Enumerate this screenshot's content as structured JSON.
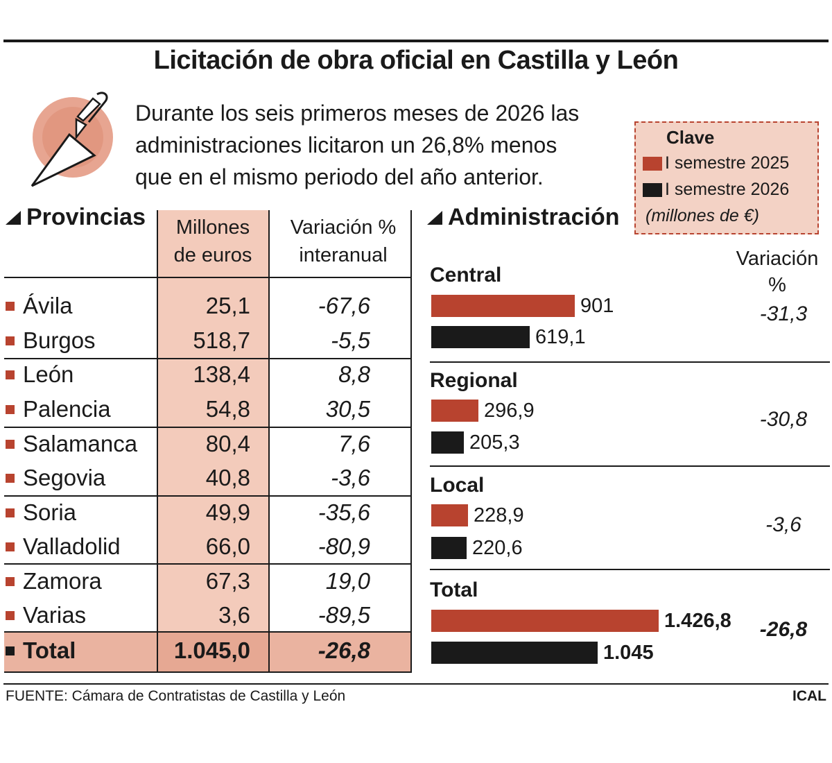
{
  "title": "Licitación de obra oficial en Castilla y León",
  "intro_lines": [
    "Durante los seis primeros meses de 2026 las",
    "administraciones licitaron un 26,8% menos",
    "que en el mismo periodo del año anterior."
  ],
  "icon": "trowel-icon",
  "colors": {
    "s2025": "#b8432f",
    "s2026": "#1a1a1a",
    "peach": "#f3cbbb",
    "legend_bg": "#f3d2c5"
  },
  "legend": {
    "title": "Clave",
    "items": [
      "I semestre 2025",
      "I semestre 2026"
    ],
    "unit": "(millones de €)"
  },
  "provincias": {
    "heading": "Provincias",
    "col1_line1": "Millones",
    "col1_line2": "de euros",
    "col2_line1": "Variación %",
    "col2_line2": "interanual",
    "rows": [
      {
        "name": "Ávila",
        "value": "25,1",
        "var": "-67,6"
      },
      {
        "name": "Burgos",
        "value": "518,7",
        "var": "-5,5"
      },
      {
        "name": "León",
        "value": "138,4",
        "var": "8,8"
      },
      {
        "name": "Palencia",
        "value": "54,8",
        "var": "30,5"
      },
      {
        "name": "Salamanca",
        "value": "80,4",
        "var": "7,6"
      },
      {
        "name": "Segovia",
        "value": "40,8",
        "var": "-3,6"
      },
      {
        "name": "Soria",
        "value": "49,9",
        "var": "-35,6"
      },
      {
        "name": "Valladolid",
        "value": "66,0",
        "var": "-80,9"
      },
      {
        "name": "Zamora",
        "value": "67,3",
        "var": "19,0"
      },
      {
        "name": "Varias",
        "value": "3,6",
        "var": "-89,5"
      }
    ],
    "total": {
      "name": "Total",
      "value": "1.045,0",
      "var": "-26,8"
    }
  },
  "administracion": {
    "heading": "Administración",
    "var_head_line1": "Variación",
    "var_head_line2": "%"
  },
  "chart_data": {
    "type": "bar",
    "orientation": "horizontal",
    "categories": [
      "Central",
      "Regional",
      "Local",
      "Total"
    ],
    "series": [
      {
        "name": "I semestre 2025",
        "values": [
          901,
          296.9,
          228.9,
          1426.8
        ],
        "labels": [
          "901",
          "296,9",
          "228,9",
          "1.426,8"
        ]
      },
      {
        "name": "I semestre 2026",
        "values": [
          619.1,
          205.3,
          220.6,
          1045
        ],
        "labels": [
          "619,1",
          "205,3",
          "220,6",
          "1.045"
        ]
      }
    ],
    "variation": [
      "-31,3",
      "-30,8",
      "-3,6",
      "-26,8"
    ],
    "unit": "(millones de €)"
  },
  "source": "FUENTE: Cámara de Contratistas de Castilla y León",
  "credit": "ICAL"
}
